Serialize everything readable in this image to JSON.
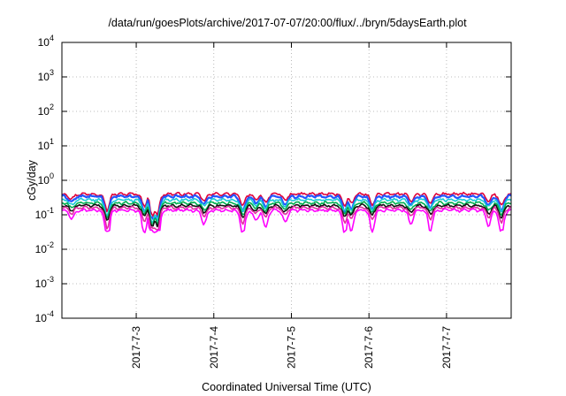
{
  "chart_data": {
    "type": "line",
    "title": "/data/run/goesPlots/archive/2017-07-07/20:00/flux/../bryn/5daysEarth.plot",
    "xlabel": "Coordinated Universal Time (UTC)",
    "ylabel": "cGy/day",
    "yscale": "log",
    "ylim": [
      0.0001,
      10000
    ],
    "yticks": [
      {
        "value": 0.0001,
        "base": "10",
        "exp": "-4"
      },
      {
        "value": 0.001,
        "base": "10",
        "exp": "-3"
      },
      {
        "value": 0.01,
        "base": "10",
        "exp": "-2"
      },
      {
        "value": 0.1,
        "base": "10",
        "exp": "-1"
      },
      {
        "value": 1,
        "base": "10",
        "exp": "0"
      },
      {
        "value": 10,
        "base": "10",
        "exp": "1"
      },
      {
        "value": 100,
        "base": "10",
        "exp": "2"
      },
      {
        "value": 1000,
        "base": "10",
        "exp": "3"
      },
      {
        "value": 10000,
        "base": "10",
        "exp": "4"
      }
    ],
    "xlim": [
      "2017-07-02 01:00",
      "2017-07-07 20:00"
    ],
    "xticks": [
      "2017-7-3",
      "2017-7-4",
      "2017-7-5",
      "2017-7-6",
      "2017-7-7"
    ],
    "xtick_values": [
      "2017-07-03 00:00",
      "2017-07-04 00:00",
      "2017-07-05 00:00",
      "2017-07-06 00:00",
      "2017-07-07 00:00"
    ],
    "grid": true,
    "legend": null,
    "series": [
      {
        "color": "#e0003a",
        "baseline": 0.4,
        "dip_depth": 0.3
      },
      {
        "color": "#2255ff",
        "baseline": 0.34,
        "dip_depth": 0.35
      },
      {
        "color": "#19c9d6",
        "baseline": 0.27,
        "dip_depth": 0.3
      },
      {
        "color": "#00b050",
        "baseline": 0.22,
        "dip_depth": 0.3
      },
      {
        "color": "#111111",
        "baseline": 0.185,
        "dip_depth": 0.3
      },
      {
        "color": "#e02fa0",
        "baseline": 0.16,
        "dip_depth": 0.35
      },
      {
        "color": "#ff00ff",
        "baseline": 0.135,
        "dip_depth": 0.5
      }
    ],
    "dips": [
      {
        "at": "2017-07-02 04:00",
        "factor": 0.9
      },
      {
        "at": "2017-07-02 15:00",
        "factor": 2.2
      },
      {
        "at": "2017-07-03 02:30",
        "factor": 1.8
      },
      {
        "at": "2017-07-03 05:00",
        "factor": 3.0
      },
      {
        "at": "2017-07-03 06:30",
        "factor": 2.6
      },
      {
        "at": "2017-07-03 21:00",
        "factor": 1.2
      },
      {
        "at": "2017-07-04 09:00",
        "factor": 1.8
      },
      {
        "at": "2017-07-04 13:00",
        "factor": 1.0
      },
      {
        "at": "2017-07-04 16:00",
        "factor": 1.4
      },
      {
        "at": "2017-07-04 22:00",
        "factor": 1.1
      },
      {
        "at": "2017-07-05 16:30",
        "factor": 1.8
      },
      {
        "at": "2017-07-05 18:30",
        "factor": 1.6
      },
      {
        "at": "2017-07-06 01:00",
        "factor": 1.6
      },
      {
        "at": "2017-07-06 13:00",
        "factor": 1.2
      },
      {
        "at": "2017-07-06 19:00",
        "factor": 1.5
      },
      {
        "at": "2017-07-07 13:00",
        "factor": 1.3
      },
      {
        "at": "2017-07-07 17:00",
        "factor": 1.8
      }
    ]
  }
}
